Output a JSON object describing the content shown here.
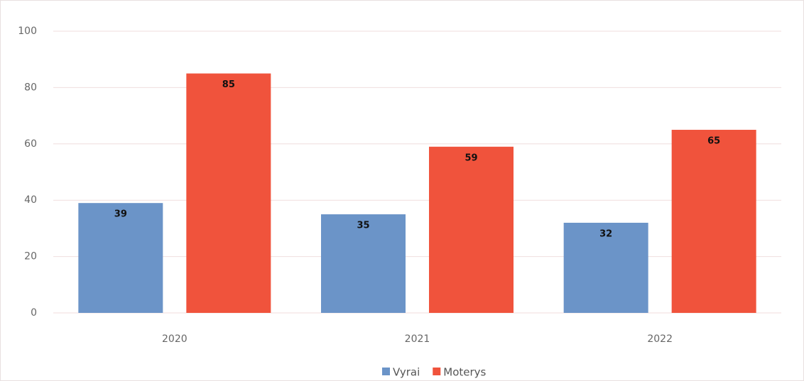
{
  "chart_data": {
    "type": "bar",
    "categories": [
      "2020",
      "2021",
      "2022"
    ],
    "series": [
      {
        "name": "Vyrai",
        "color": "#6b94c8",
        "values": [
          39,
          35,
          32
        ]
      },
      {
        "name": "Moterys",
        "color": "#f0533c",
        "values": [
          85,
          59,
          65
        ]
      }
    ],
    "ylim": [
      0,
      100
    ],
    "yticks": [
      0,
      20,
      40,
      60,
      80,
      100
    ],
    "grid": true,
    "legend": "bottom"
  }
}
